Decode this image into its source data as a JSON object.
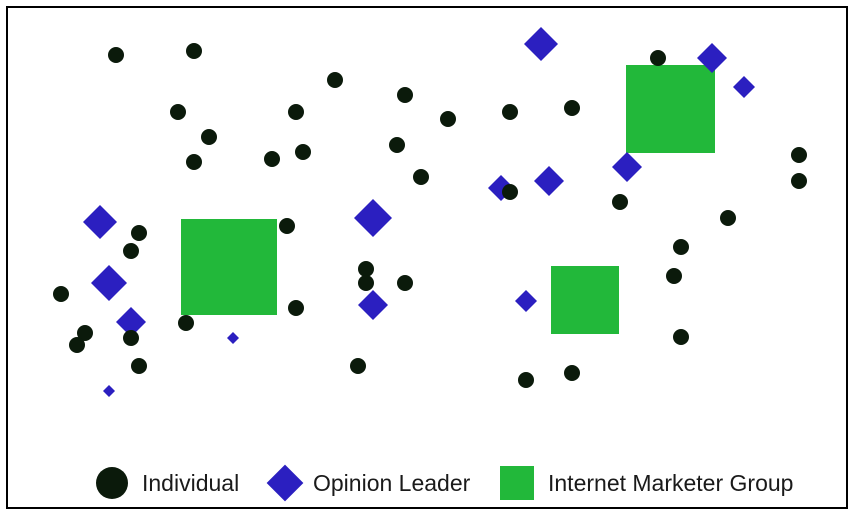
{
  "colors": {
    "individual": "#0b1a0b",
    "opinion_leader": "#2b1fc0",
    "marketer_group": "#22b83a"
  },
  "legend": {
    "individual": "Individual",
    "opinion_leader": "Opinion Leader",
    "marketer_group": "Internet Marketer Group"
  }
}
